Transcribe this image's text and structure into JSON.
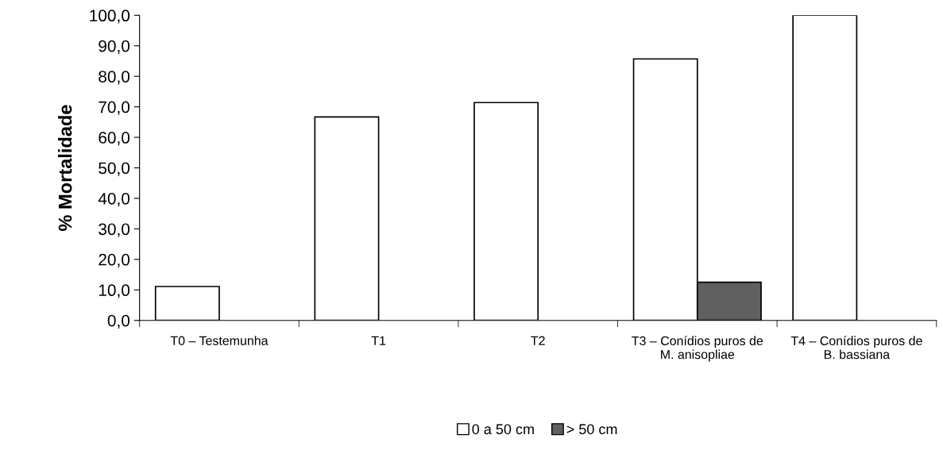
{
  "chart_data": {
    "type": "bar",
    "ylabel": "% Mortalidade",
    "categories": [
      "T0 – Testemunha",
      "T1",
      "T2",
      "T3 – Conídios puros de M. anisopliae",
      "T4 – Conídios puros de B. bassiana"
    ],
    "series": [
      {
        "name": "0 a 50 cm",
        "color": "#ffffff",
        "values": [
          11.1,
          66.7,
          71.4,
          85.7,
          100.0
        ]
      },
      {
        "name": "> 50 cm",
        "color": "#606060",
        "values": [
          null,
          null,
          null,
          12.5,
          null
        ]
      }
    ],
    "ylim": [
      0,
      100
    ],
    "yticks": [
      {
        "value": 0,
        "label": "0,0"
      },
      {
        "value": 10,
        "label": "10,0"
      },
      {
        "value": 20,
        "label": "20,0"
      },
      {
        "value": 30,
        "label": "30,0"
      },
      {
        "value": 40,
        "label": "40,0"
      },
      {
        "value": 50,
        "label": "50,0"
      },
      {
        "value": 60,
        "label": "60,0"
      },
      {
        "value": 70,
        "label": "70,0"
      },
      {
        "value": 80,
        "label": "80,0"
      },
      {
        "value": 90,
        "label": "90,0"
      },
      {
        "value": 100,
        "label": "100,0"
      }
    ],
    "grid": false,
    "legend": "bottom"
  }
}
